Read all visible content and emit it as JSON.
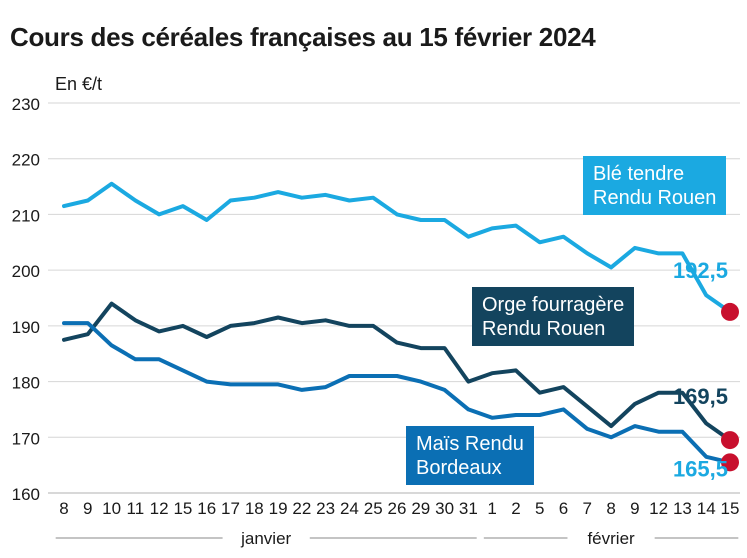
{
  "chart_data": {
    "type": "line",
    "title": "Cours des céréales françaises au 15 février 2024",
    "ylabel": "En €/t",
    "ylim": [
      160,
      230
    ],
    "yticks": [
      160,
      170,
      180,
      190,
      200,
      210,
      220,
      230
    ],
    "grid": true,
    "x": [
      "8",
      "9",
      "10",
      "11",
      "12",
      "15",
      "16",
      "17",
      "18",
      "19",
      "22",
      "23",
      "24",
      "25",
      "26",
      "29",
      "30",
      "31",
      "1",
      "2",
      "5",
      "6",
      "7",
      "8",
      "9",
      "12",
      "13",
      "14",
      "15"
    ],
    "month_groups": [
      {
        "label": "janvier",
        "from": 0,
        "to": 17
      },
      {
        "label": "février",
        "from": 18,
        "to": 28
      }
    ],
    "series": [
      {
        "name": "Blé tendre Rendu Rouen",
        "name_lines": [
          "Blé tendre",
          "Rendu Rouen"
        ],
        "color": "#1ba9e1",
        "label_color": "#1ba9e1",
        "values": [
          211.5,
          212.5,
          215.5,
          212.5,
          210,
          211.5,
          209,
          212.5,
          213,
          214,
          213,
          213.5,
          212.5,
          213,
          210,
          209,
          209,
          206,
          207.5,
          208,
          205,
          206,
          203,
          200.5,
          204,
          203,
          203,
          195.5,
          192.5
        ],
        "end_label": "192,5"
      },
      {
        "name": "Orge fourragère Rendu Rouen",
        "name_lines": [
          "Orge fourragère",
          "Rendu Rouen"
        ],
        "color": "#13445e",
        "label_color": "#13445e",
        "values": [
          187.5,
          188.5,
          194,
          191,
          189,
          190,
          188,
          190,
          190.5,
          191.5,
          190.5,
          191,
          190,
          190,
          187,
          186,
          186,
          180,
          181.5,
          182,
          178,
          179,
          175.5,
          172,
          176,
          178,
          178,
          172.5,
          169.5
        ],
        "end_label": "169,5"
      },
      {
        "name": "Maïs Rendu Bordeaux",
        "name_lines": [
          "Maïs Rendu",
          "Bordeaux"
        ],
        "color": "#0b6fb4",
        "label_color": "#1ba9e1",
        "values": [
          190.5,
          190.5,
          186.5,
          184,
          184,
          182,
          180,
          179.5,
          179.5,
          179.5,
          178.5,
          179,
          181,
          181,
          181,
          180,
          178.5,
          175,
          173.5,
          174,
          174,
          175,
          171.5,
          170,
          172,
          171,
          171,
          166.5,
          165.5
        ],
        "end_label": "165,5"
      }
    ],
    "end_marker_color": "#c8102e"
  }
}
